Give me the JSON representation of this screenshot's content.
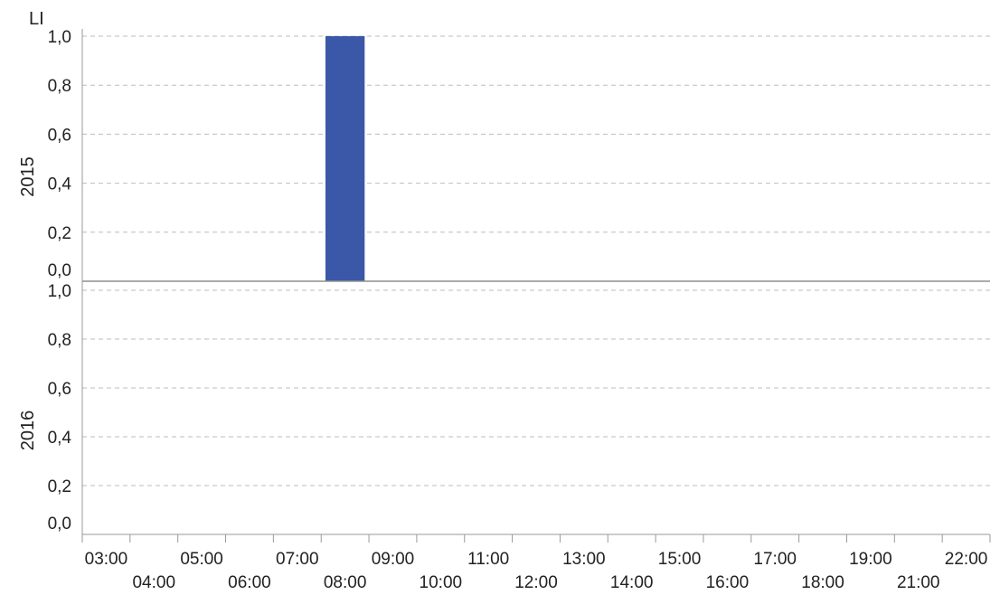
{
  "chart_data": {
    "type": "bar",
    "title": "",
    "ylabel": "LI",
    "xlabel": "",
    "x_categories": [
      "03:00",
      "04:00",
      "05:00",
      "06:00",
      "07:00",
      "08:00",
      "09:00",
      "10:00",
      "11:00",
      "12:00",
      "13:00",
      "14:00",
      "15:00",
      "16:00",
      "17:00",
      "18:00",
      "19:00",
      "21:00",
      "22:00"
    ],
    "y_ticks": [
      "0,0",
      "0,2",
      "0,4",
      "0,6",
      "0,8",
      "1,0"
    ],
    "ylim": [
      0,
      1
    ],
    "grid": true,
    "panels": [
      {
        "label": "2015",
        "values": [
          0,
          0,
          0,
          0,
          0,
          1,
          0,
          0,
          0,
          0,
          0,
          0,
          0,
          0,
          0,
          0,
          0,
          0,
          0
        ],
        "color": "#3b57a8"
      },
      {
        "label": "2016",
        "values": [
          0,
          0,
          0,
          0,
          0,
          0,
          0,
          0,
          0,
          0,
          0,
          0,
          0,
          0,
          0,
          0,
          0,
          0,
          0
        ],
        "color": "#3b57a8"
      }
    ]
  }
}
